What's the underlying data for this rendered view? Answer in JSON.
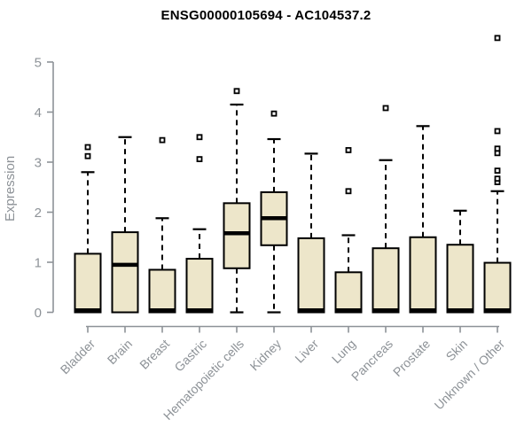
{
  "chart_data": {
    "type": "boxplot",
    "title": "ENSG00000105694 - AC104537.2",
    "ylabel": "Expression",
    "xlabel": "",
    "ylim": [
      0,
      5
    ],
    "yticks": [
      0,
      1,
      2,
      3,
      4,
      5
    ],
    "grid": false,
    "legend": "none",
    "categories": [
      "Bladder",
      "Brain",
      "Breast",
      "Gastric",
      "Hematopoietic cells",
      "Kidney",
      "Liver",
      "Lung",
      "Pancreas",
      "Prostate",
      "Skin",
      "Unknown / Other"
    ],
    "boxes": [
      {
        "low": 0,
        "q1": 0,
        "median": 0.04,
        "q3": 1.17,
        "high": 2.8,
        "outliers": [
          3.12,
          3.3
        ]
      },
      {
        "low": 0,
        "q1": 0,
        "median": 0.95,
        "q3": 1.6,
        "high": 3.5,
        "outliers": []
      },
      {
        "low": 0,
        "q1": 0,
        "median": 0.04,
        "q3": 0.85,
        "high": 1.88,
        "outliers": [
          3.44
        ]
      },
      {
        "low": 0,
        "q1": 0,
        "median": 0.04,
        "q3": 1.07,
        "high": 1.66,
        "outliers": [
          3.06,
          3.5
        ]
      },
      {
        "low": 0,
        "q1": 0.88,
        "median": 1.58,
        "q3": 2.18,
        "high": 4.15,
        "outliers": [
          4.42
        ]
      },
      {
        "low": 0,
        "q1": 1.34,
        "median": 1.88,
        "q3": 2.4,
        "high": 3.46,
        "outliers": [
          3.97
        ]
      },
      {
        "low": 0,
        "q1": 0,
        "median": 0.04,
        "q3": 1.48,
        "high": 3.17,
        "outliers": []
      },
      {
        "low": 0,
        "q1": 0,
        "median": 0.04,
        "q3": 0.8,
        "high": 1.54,
        "outliers": [
          2.42,
          3.24
        ]
      },
      {
        "low": 0,
        "q1": 0,
        "median": 0.04,
        "q3": 1.28,
        "high": 3.04,
        "outliers": [
          4.08
        ]
      },
      {
        "low": 0,
        "q1": 0,
        "median": 0.04,
        "q3": 1.5,
        "high": 3.72,
        "outliers": []
      },
      {
        "low": 0,
        "q1": 0,
        "median": 0.04,
        "q3": 1.35,
        "high": 2.03,
        "outliers": []
      },
      {
        "low": 0,
        "q1": 0,
        "median": 0.04,
        "q3": 0.99,
        "high": 2.42,
        "outliers": [
          2.6,
          2.67,
          2.83,
          3.18,
          3.27,
          3.62,
          5.48
        ]
      }
    ],
    "colors": {
      "box_fill": "#EDE6CA",
      "box_border": "#000000",
      "median": "#000000",
      "whisker": "#000000",
      "outlier_fill": "#ffffff",
      "outlier_border": "#000000",
      "axis": "#8d9297",
      "tick_label": "#8d9297",
      "title": "#000000",
      "background": "#ffffff"
    }
  }
}
